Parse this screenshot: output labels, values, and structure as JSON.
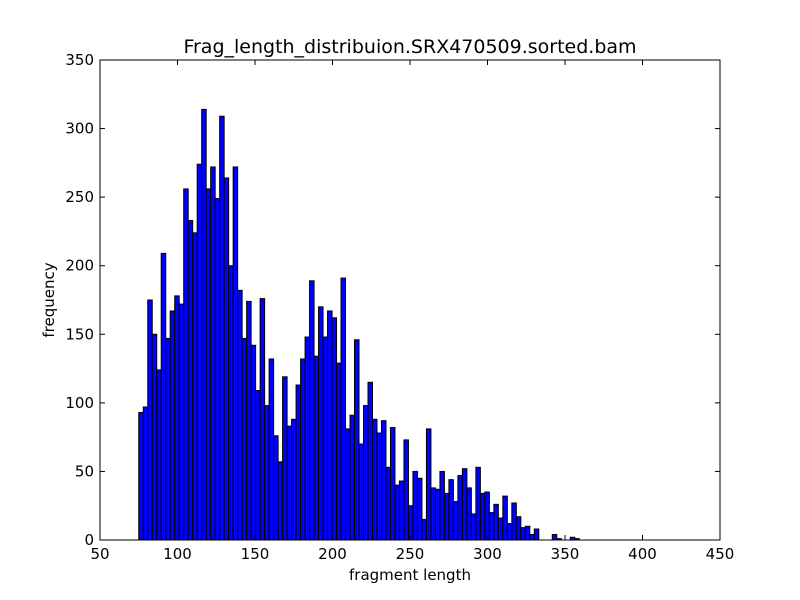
{
  "chart_data": {
    "type": "bar",
    "title": "Frag_length_distribuion.SRX470509.sorted.bam",
    "xlabel": "fragment length",
    "ylabel": "frequency",
    "xlim": [
      50,
      450
    ],
    "ylim": [
      0,
      350
    ],
    "xticks": [
      50,
      100,
      150,
      200,
      250,
      300,
      350,
      400,
      450
    ],
    "yticks": [
      0,
      50,
      100,
      150,
      200,
      250,
      300,
      350
    ],
    "grid": false,
    "legend": "none",
    "bar_color": "#0000ff",
    "edge_color": "#000000",
    "bin_width": 2.9,
    "bins": [
      [
        75,
        93
      ],
      [
        77.9,
        97
      ],
      [
        80.8,
        175
      ],
      [
        83.7,
        150
      ],
      [
        86.6,
        124
      ],
      [
        89.5,
        209
      ],
      [
        92.4,
        147
      ],
      [
        95.3,
        167
      ],
      [
        98.2,
        178
      ],
      [
        101.1,
        172
      ],
      [
        104,
        256
      ],
      [
        106.9,
        233
      ],
      [
        109.8,
        224
      ],
      [
        112.7,
        274
      ],
      [
        115.6,
        314
      ],
      [
        118.5,
        256
      ],
      [
        121.4,
        272
      ],
      [
        124.3,
        249
      ],
      [
        127.2,
        309
      ],
      [
        130.1,
        264
      ],
      [
        133,
        200
      ],
      [
        135.9,
        272
      ],
      [
        138.8,
        182
      ],
      [
        141.7,
        147
      ],
      [
        144.6,
        174
      ],
      [
        147.5,
        142
      ],
      [
        150.4,
        109
      ],
      [
        153.3,
        176
      ],
      [
        156.2,
        98
      ],
      [
        159.1,
        132
      ],
      [
        162,
        76
      ],
      [
        164.9,
        57
      ],
      [
        167.8,
        119
      ],
      [
        170.7,
        83
      ],
      [
        173.6,
        88
      ],
      [
        176.5,
        113
      ],
      [
        179.4,
        132
      ],
      [
        182.3,
        148
      ],
      [
        185.2,
        189
      ],
      [
        188.1,
        134
      ],
      [
        191,
        170
      ],
      [
        193.9,
        148
      ],
      [
        196.8,
        167
      ],
      [
        199.7,
        162
      ],
      [
        202.6,
        129
      ],
      [
        205.5,
        191
      ],
      [
        208.4,
        81
      ],
      [
        211.3,
        91
      ],
      [
        214.2,
        146
      ],
      [
        217.1,
        70
      ],
      [
        220,
        98
      ],
      [
        222.9,
        115
      ],
      [
        225.8,
        88
      ],
      [
        228.7,
        78
      ],
      [
        231.6,
        87
      ],
      [
        234.5,
        53
      ],
      [
        237.4,
        82
      ],
      [
        240.3,
        40
      ],
      [
        243.2,
        43
      ],
      [
        246.1,
        73
      ],
      [
        249,
        25
      ],
      [
        251.9,
        50
      ],
      [
        254.8,
        45
      ],
      [
        257.7,
        15
      ],
      [
        260.6,
        81
      ],
      [
        263.5,
        38
      ],
      [
        266.4,
        37
      ],
      [
        269.3,
        50
      ],
      [
        272.2,
        34
      ],
      [
        275.1,
        44
      ],
      [
        278,
        28
      ],
      [
        280.9,
        47
      ],
      [
        283.8,
        52
      ],
      [
        286.7,
        38
      ],
      [
        289.6,
        19
      ],
      [
        292.5,
        53
      ],
      [
        295.4,
        34
      ],
      [
        298.3,
        35
      ],
      [
        301.2,
        20
      ],
      [
        304.1,
        26
      ],
      [
        307,
        16
      ],
      [
        309.9,
        32
      ],
      [
        312.8,
        12
      ],
      [
        315.7,
        27
      ],
      [
        318.6,
        17
      ],
      [
        321.5,
        9
      ],
      [
        324.4,
        10
      ],
      [
        327.3,
        4
      ],
      [
        330.2,
        8
      ],
      [
        333.1,
        0
      ],
      [
        336,
        0
      ],
      [
        338.9,
        0
      ],
      [
        341.8,
        4
      ],
      [
        344.7,
        1
      ],
      [
        347.6,
        0
      ],
      [
        350.5,
        0
      ],
      [
        353.4,
        2
      ],
      [
        356.3,
        1
      ]
    ]
  }
}
